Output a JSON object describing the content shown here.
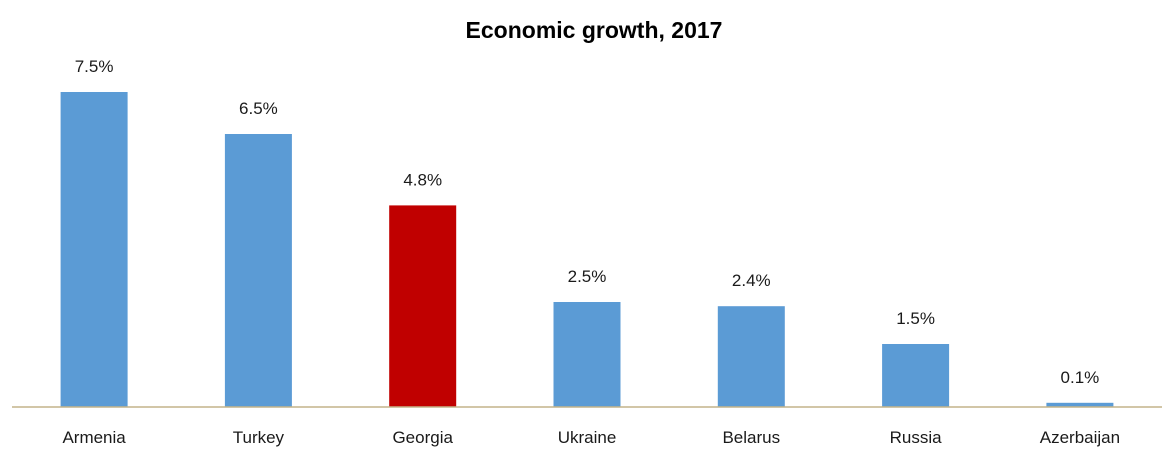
{
  "chart_data": {
    "type": "bar",
    "title": "Economic growth, 2017",
    "xlabel": "",
    "ylabel": "",
    "categories": [
      "Armenia",
      "Turkey",
      "Georgia",
      "Ukraine",
      "Belarus",
      "Russia",
      "Azerbaijan"
    ],
    "values": [
      7.5,
      6.5,
      4.8,
      2.5,
      2.4,
      1.5,
      0.1
    ],
    "data_labels": [
      "7.5%",
      "6.5%",
      "4.8%",
      "2.5%",
      "2.4%",
      "1.5%",
      "0.1%"
    ],
    "value_unit": "%",
    "ylim": [
      0,
      8
    ],
    "grid": false,
    "legend": "none",
    "highlight_category": "Georgia",
    "colors": {
      "bar": "#5b9bd5",
      "highlight": "#c00000",
      "axis": "#c4b48a"
    }
  }
}
